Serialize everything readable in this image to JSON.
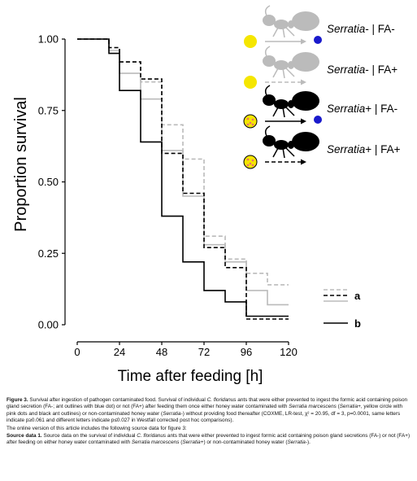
{
  "chart_data": {
    "type": "line",
    "subtype": "step (Kaplan-Meier survival)",
    "xlabel": "Time after feeding [h]",
    "ylabel": "Proportion survival",
    "xlim": [
      0,
      120
    ],
    "ylim": [
      0,
      1
    ],
    "xticks": [
      "0",
      "24",
      "48",
      "72",
      "96",
      "120"
    ],
    "yticks": [
      "0.00",
      "0.25",
      "0.50",
      "0.75",
      "1.00"
    ],
    "grid": false,
    "legend_position": "top-right",
    "series": [
      {
        "name": "Serratia- | FA-",
        "color": "#bbbbbb",
        "dash": "solid",
        "points": [
          [
            0,
            1.0
          ],
          [
            12,
            1.0
          ],
          [
            18,
            0.96
          ],
          [
            24,
            0.88
          ],
          [
            30,
            0.88
          ],
          [
            36,
            0.79
          ],
          [
            42,
            0.79
          ],
          [
            48,
            0.61
          ],
          [
            54,
            0.61
          ],
          [
            60,
            0.45
          ],
          [
            66,
            0.45
          ],
          [
            72,
            0.28
          ],
          [
            78,
            0.28
          ],
          [
            84,
            0.22
          ],
          [
            90,
            0.22
          ],
          [
            96,
            0.12
          ],
          [
            108,
            0.07
          ],
          [
            120,
            0.07
          ]
        ]
      },
      {
        "name": "Serratia- | FA+",
        "color": "#bbbbbb",
        "dash": "dashed",
        "points": [
          [
            0,
            1.0
          ],
          [
            12,
            1.0
          ],
          [
            18,
            0.97
          ],
          [
            24,
            0.92
          ],
          [
            30,
            0.92
          ],
          [
            36,
            0.85
          ],
          [
            42,
            0.85
          ],
          [
            48,
            0.7
          ],
          [
            54,
            0.7
          ],
          [
            60,
            0.58
          ],
          [
            66,
            0.58
          ],
          [
            72,
            0.31
          ],
          [
            78,
            0.31
          ],
          [
            84,
            0.23
          ],
          [
            90,
            0.23
          ],
          [
            96,
            0.18
          ],
          [
            108,
            0.14
          ],
          [
            120,
            0.14
          ]
        ]
      },
      {
        "name": "Serratia+ | FA-",
        "color": "#000000",
        "dash": "solid",
        "points": [
          [
            0,
            1.0
          ],
          [
            12,
            1.0
          ],
          [
            18,
            0.95
          ],
          [
            24,
            0.82
          ],
          [
            30,
            0.82
          ],
          [
            36,
            0.64
          ],
          [
            42,
            0.64
          ],
          [
            48,
            0.38
          ],
          [
            54,
            0.38
          ],
          [
            60,
            0.22
          ],
          [
            66,
            0.22
          ],
          [
            72,
            0.12
          ],
          [
            78,
            0.12
          ],
          [
            84,
            0.08
          ],
          [
            90,
            0.08
          ],
          [
            96,
            0.03
          ],
          [
            108,
            0.03
          ],
          [
            120,
            0.03
          ]
        ]
      },
      {
        "name": "Serratia+ | FA+",
        "color": "#000000",
        "dash": "dashed",
        "points": [
          [
            0,
            1.0
          ],
          [
            12,
            1.0
          ],
          [
            18,
            0.97
          ],
          [
            24,
            0.92
          ],
          [
            30,
            0.92
          ],
          [
            36,
            0.86
          ],
          [
            42,
            0.86
          ],
          [
            48,
            0.6
          ],
          [
            54,
            0.6
          ],
          [
            60,
            0.46
          ],
          [
            66,
            0.46
          ],
          [
            72,
            0.27
          ],
          [
            78,
            0.27
          ],
          [
            84,
            0.2
          ],
          [
            90,
            0.2
          ],
          [
            96,
            0.02
          ],
          [
            108,
            0.02
          ],
          [
            120,
            0.02
          ]
        ]
      }
    ],
    "significance": [
      {
        "label": "a",
        "lines": [
          "#bbbbbb dashed",
          "#000000 dashed",
          "#bbbbbb solid"
        ]
      },
      {
        "label": "b",
        "lines": [
          "#000000 solid"
        ]
      }
    ],
    "legend_icons": {
      "ant_uninfected_color": "#bbbbbb",
      "ant_infected_color": "#000000",
      "food_color": "#f5e600",
      "pathogen_dot_color": "#e87070",
      "fa_dot_color": "#1a1acc"
    }
  },
  "caption": {
    "fig_label": "Figure 3.",
    "fig_title": "Survival after ingestion of pathogen contaminated food.",
    "fig_text_1": " Survival of individual ",
    "species": "C. floridanus",
    "fig_text_2": " ants that were either prevented to ingest the formic acid containing poison gland secretion (FA-; ant outlines with blue dot) or not (FA+) after feeding them once either honey water contaminated with ",
    "pathogen": "Serratia marcescens",
    "fig_text_3": " (",
    "serratia_plus": "Serratia+",
    "fig_text_4": ", yellow circle with pink dots and black ant outlines) or non-contaminated honey water (",
    "serratia_minus": "Serratia-",
    "fig_text_5": ") without providing food thereafter (COXME, LR-test, χ² = 20.95, df = 3, p=0.0001, same letters indicate p≥0.061 and different letters indicate p≤0.027 in Westfall corrected post hoc comparisons).",
    "online_note": "The online version of this article includes the following source data for figure 3:",
    "source_label": "Source data 1.",
    "source_text_1": " Source data on the survival of individual ",
    "source_species": "C. floridanus",
    "source_text_2": " ants that were either prevented to ingest formic acid containing poison gland secretions (FA-) or not (FA+) after feeding on either honey water contaminated with ",
    "source_pathogen": "Serratia marcescens",
    "source_text_3": " (",
    "source_serratia_plus": "Serratia+",
    "source_text_4": ") or non-contaminated honey water (",
    "source_serratia_minus": "Serratia-",
    "source_text_5": ")."
  }
}
